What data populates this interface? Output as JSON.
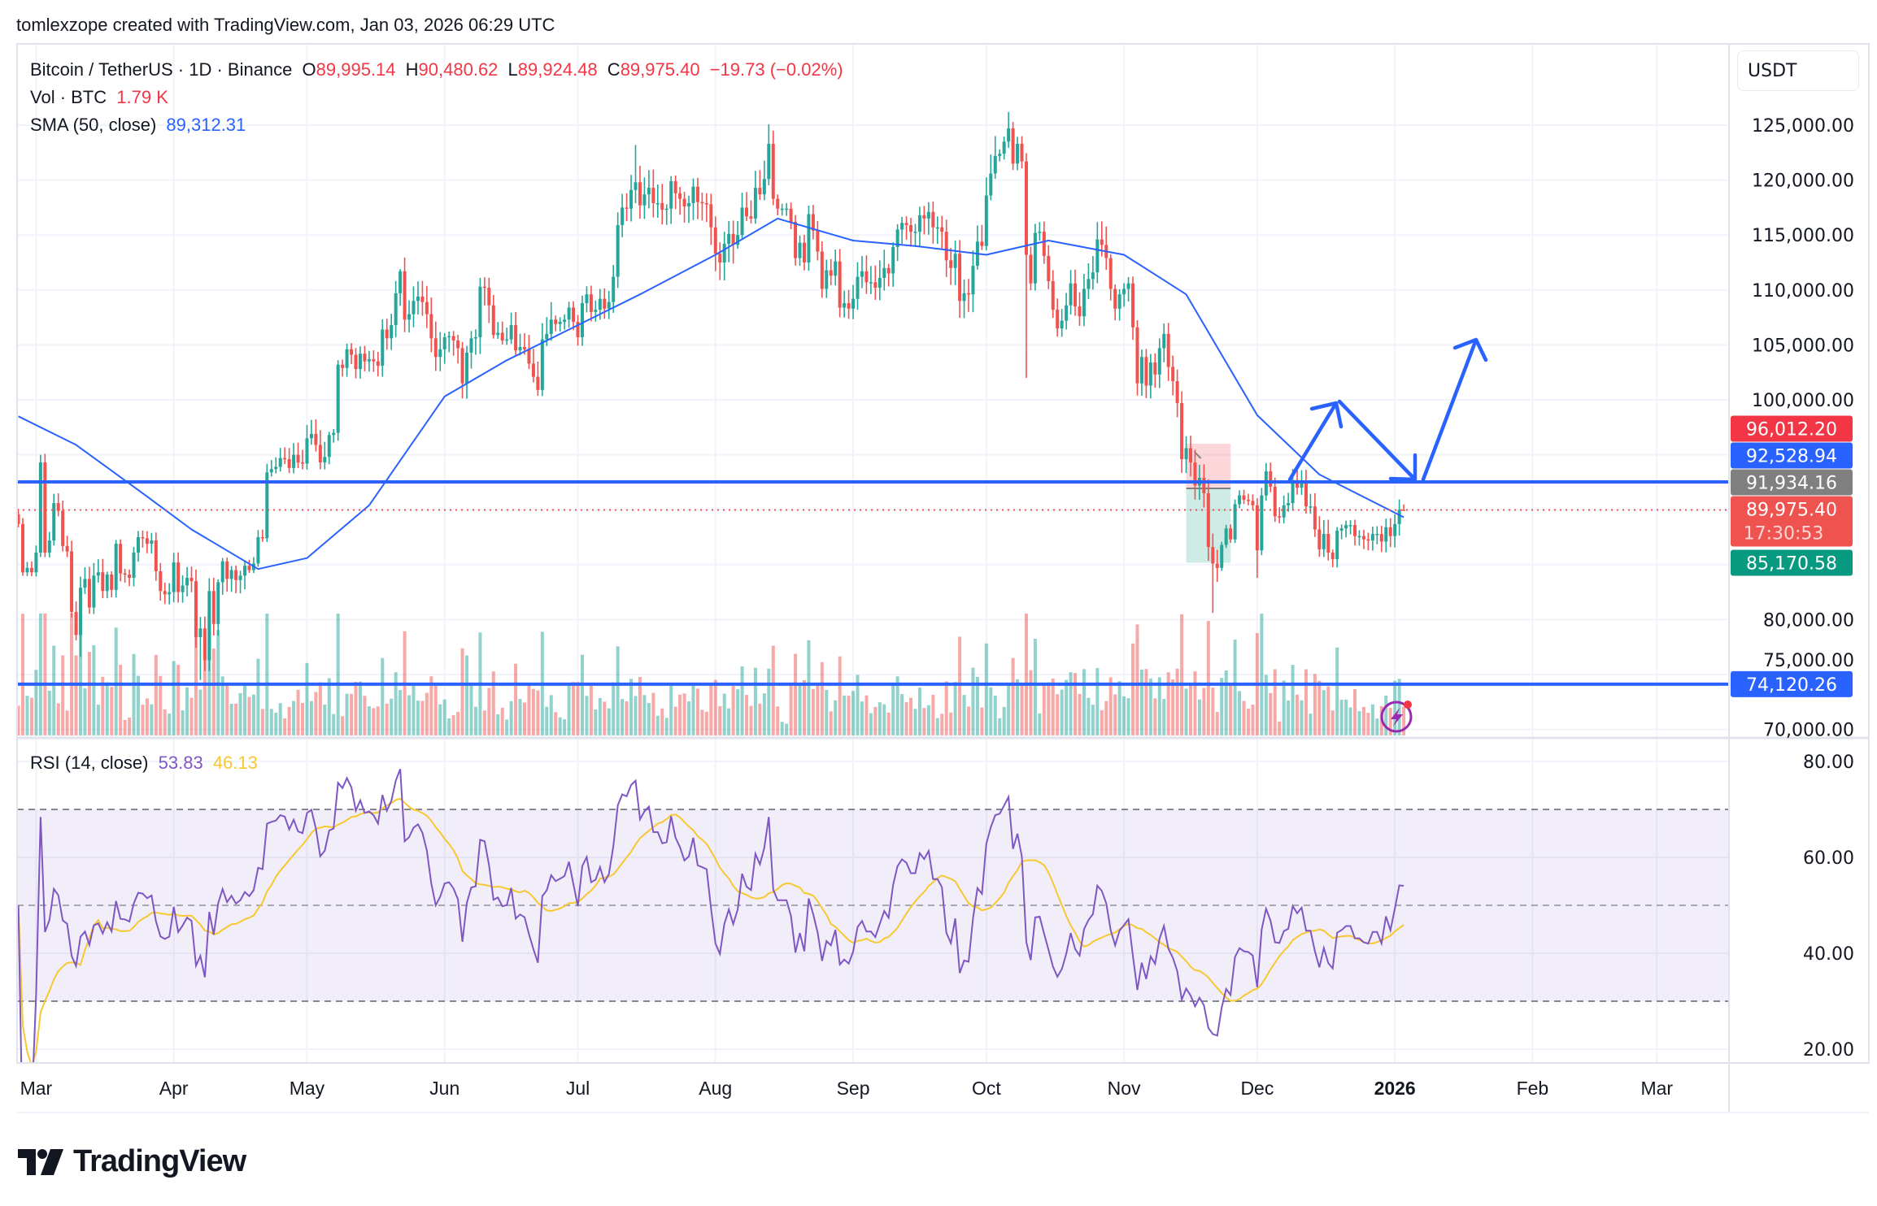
{
  "header": {
    "attribution": "tomlexzope created with TradingView.com, Jan 03, 2026 06:29 UTC"
  },
  "legend": {
    "symbol": "Bitcoin / TetherUS · 1D · Binance",
    "o_label": "O",
    "o": "89,995.14",
    "h_label": "H",
    "h": "90,480.62",
    "l_label": "L",
    "l": "89,924.48",
    "c_label": "C",
    "c": "89,975.40",
    "change": "−19.73 (−0.02%)",
    "vol_label": "Vol · BTC",
    "vol": "1.79 K",
    "sma_label": "SMA (50, close)",
    "sma": "89,312.31"
  },
  "rsi_legend": {
    "label": "RSI (14, close)",
    "rsi": "53.83",
    "ma": "46.13"
  },
  "price_axis": {
    "currency": "USDT",
    "ticks": [
      125000,
      120000,
      115000,
      110000,
      105000,
      100000,
      80000,
      75000,
      70000
    ]
  },
  "rsi_axis": {
    "ticks": [
      80,
      60,
      40,
      20
    ],
    "bands": [
      70,
      50,
      30
    ]
  },
  "time_axis": {
    "labels": [
      {
        "text": "Mar",
        "date": "2025-03-01"
      },
      {
        "text": "Apr",
        "date": "2025-04-01"
      },
      {
        "text": "May",
        "date": "2025-05-01"
      },
      {
        "text": "Jun",
        "date": "2025-06-01"
      },
      {
        "text": "Jul",
        "date": "2025-07-01"
      },
      {
        "text": "Aug",
        "date": "2025-08-01"
      },
      {
        "text": "Sep",
        "date": "2025-09-01"
      },
      {
        "text": "Oct",
        "date": "2025-10-01"
      },
      {
        "text": "Nov",
        "date": "2025-11-01"
      },
      {
        "text": "Dec",
        "date": "2025-12-01"
      },
      {
        "text": "2026",
        "date": "2026-01-01",
        "bold": true
      },
      {
        "text": "Feb",
        "date": "2026-02-01"
      },
      {
        "text": "Mar",
        "date": "2026-03-01"
      }
    ]
  },
  "price_labels": [
    {
      "value": 96012.2,
      "text": "96,012.20",
      "role": "position-stop",
      "color": "#f23645"
    },
    {
      "value": 92528.94,
      "text": "92,528.94",
      "role": "horizontal-line",
      "color": "#2962ff"
    },
    {
      "value": 91934.16,
      "text": "91,934.16",
      "role": "position-entry",
      "color": "#808080"
    },
    {
      "value": 89975.4,
      "text": "89,975.40",
      "countdown": "17:30:53",
      "role": "last-price",
      "color": "#ef5350"
    },
    {
      "value": 85170.58,
      "text": "85,170.58",
      "role": "position-target",
      "color": "#089981"
    },
    {
      "value": 74120.26,
      "text": "74,120.26",
      "role": "horizontal-line",
      "color": "#2962ff"
    }
  ],
  "drawings": {
    "horizontal_lines": [
      92528.94,
      74120.26
    ],
    "position": {
      "entry": 91934.16,
      "stop": 96012.2,
      "target": 85170.58,
      "from": "2025-11-15",
      "to": "2025-11-25"
    },
    "last_price": 89975.4
  },
  "colors": {
    "up": "#26a69a",
    "down": "#ef5350",
    "sma": "#2962ff",
    "rsi": "#7e57c2",
    "rsi_ma": "#f7c831",
    "drawing": "#2962ff"
  },
  "logo": "TradingView",
  "chart_data": {
    "type": "candlestick",
    "title": "Bitcoin / TetherUS · 1D · Binance",
    "ylim": [
      70000,
      127000
    ],
    "grid": true,
    "closes_by_month": [
      {
        "month": "2025-02",
        "from_day": 25,
        "closes": [
          88700,
          84300,
          84700,
          84300
        ]
      },
      {
        "month": "2025-03",
        "from_day": 1,
        "closes": [
          86100,
          94300,
          86100,
          87200,
          90600,
          89900,
          86700,
          86200,
          80700,
          78600,
          82900,
          83700,
          81100,
          84000,
          84300,
          82600,
          84100,
          82700,
          86900,
          84200,
          84100,
          83800,
          86100,
          87500,
          87400,
          86900,
          87200,
          84400,
          82600,
          82300,
          82500
        ]
      },
      {
        "month": "2025-04",
        "from_day": 1,
        "closes": [
          85200,
          82500,
          83100,
          83800,
          83500,
          78400,
          79200,
          76300,
          82600,
          79600,
          83400,
          85300,
          83700,
          84500,
          83600,
          84000,
          84900,
          84500,
          85100,
          87500,
          87400,
          93400,
          93700,
          93900,
          94700,
          94600,
          93800,
          95000,
          94300,
          94200
        ]
      },
      {
        "month": "2025-05",
        "from_day": 1,
        "closes": [
          96500,
          96900,
          95900,
          94300,
          94800,
          96800,
          97000,
          103200,
          102900,
          104600,
          104100,
          102800,
          104200,
          103500,
          103700,
          103500,
          103100,
          106400,
          105600,
          106800,
          109700,
          111700,
          107300,
          107800,
          109000,
          109400,
          108900,
          107800,
          105600,
          103900,
          104600
        ]
      },
      {
        "month": "2025-06",
        "from_day": 1,
        "closes": [
          105700,
          105800,
          105400,
          104700,
          101500,
          104300,
          105600,
          105700,
          110300,
          110200,
          108600,
          105900,
          106100,
          105400,
          105500,
          106800,
          104500,
          104800,
          104600,
          103300,
          102100,
          100900,
          105500,
          106000,
          107300,
          106900,
          107100,
          107300,
          108400,
          107100
        ]
      },
      {
        "month": "2025-07",
        "from_day": 1,
        "closes": [
          105700,
          108800,
          109600,
          108000,
          108200,
          109200,
          108300,
          108900,
          111200,
          115900,
          117500,
          117400,
          119100,
          119800,
          117700,
          118700,
          119300,
          117900,
          117900,
          117300,
          117400,
          119900,
          118800,
          118300,
          117600,
          117900,
          119400,
          118000,
          117900,
          117800,
          115700
        ]
      },
      {
        "month": "2025-08",
        "from_day": 1,
        "closes": [
          113300,
          112500,
          114200,
          115100,
          114100,
          115000,
          117500,
          116700,
          116500,
          119300,
          118700,
          120100,
          123300,
          118300,
          117400,
          117400,
          117400,
          116200,
          112900,
          114300,
          112500,
          116900,
          115400,
          113500,
          110100,
          111800,
          111300,
          112600,
          108400,
          108800,
          108300
        ]
      },
      {
        "month": "2025-09",
        "from_day": 1,
        "closes": [
          109200,
          111200,
          111700,
          110700,
          110700,
          110200,
          111100,
          112000,
          111500,
          113900,
          115500,
          116100,
          115900,
          115300,
          115300,
          116800,
          116500,
          117100,
          115700,
          115700,
          115300,
          112700,
          112000,
          113300,
          109000,
          109700,
          109600,
          112200,
          114400,
          114000
        ]
      },
      {
        "month": "2025-10",
        "from_day": 1,
        "closes": [
          118600,
          120600,
          122200,
          122400,
          123500,
          124700,
          121500,
          123300,
          121700,
          113200,
          110600,
          115200,
          115300,
          113100,
          110800,
          108200,
          106500,
          107200,
          108600,
          110600,
          108500,
          107600,
          110100,
          111000,
          111600,
          114600,
          114100,
          112900,
          110100,
          108300,
          109600
        ]
      },
      {
        "month": "2025-11",
        "from_day": 1,
        "closes": [
          110100,
          110600,
          106600,
          101500,
          103900,
          101300,
          103400,
          102300,
          104700,
          106000,
          103000,
          101700,
          99700,
          94600,
          95600,
          94300,
          92200,
          92900,
          91500,
          86600,
          85100,
          84700,
          86800,
          88300,
          87300,
          90500,
          91300,
          90900,
          90800,
          90400
        ]
      },
      {
        "month": "2025-12",
        "from_day": 1,
        "closes": [
          86300,
          91300,
          93500,
          92100,
          89400,
          89300,
          90400,
          90600,
          92700,
          92000,
          92500,
          90300,
          90300,
          88200,
          86400,
          87800,
          86100,
          85500,
          88100,
          88300,
          88600,
          88600,
          87600,
          87600,
          87300,
          87200,
          87800,
          87800,
          87100,
          88400,
          87600
        ]
      },
      {
        "month": "2026-01",
        "from_day": 1,
        "closes": [
          88700,
          89995.14,
          89975.4
        ]
      }
    ],
    "last_bar": {
      "open": 89995.14,
      "high": 90480.62,
      "low": 89924.48,
      "close": 89975.4
    },
    "notable_highs": {
      "2025-03-02": 95000,
      "2025-05-22": 111900,
      "2025-07-14": 123200,
      "2025-08-14": 124500,
      "2025-10-06": 126200
    },
    "notable_lows": {
      "2025-03-11": 76600,
      "2025-04-07": 74500,
      "2025-10-10": 102000,
      "2025-11-21": 80600,
      "2025-12-01": 83800
    },
    "sma50": [
      {
        "date": "2025-02-25",
        "value": 98500
      },
      {
        "date": "2025-03-10",
        "value": 95900
      },
      {
        "date": "2025-03-25",
        "value": 91500
      },
      {
        "date": "2025-04-05",
        "value": 88200
      },
      {
        "date": "2025-04-20",
        "value": 84600
      },
      {
        "date": "2025-05-01",
        "value": 85600
      },
      {
        "date": "2025-05-15",
        "value": 90400
      },
      {
        "date": "2025-06-01",
        "value": 100300
      },
      {
        "date": "2025-06-15",
        "value": 103600
      },
      {
        "date": "2025-07-01",
        "value": 106800
      },
      {
        "date": "2025-07-15",
        "value": 109600
      },
      {
        "date": "2025-08-01",
        "value": 113200
      },
      {
        "date": "2025-08-15",
        "value": 116500
      },
      {
        "date": "2025-09-01",
        "value": 114500
      },
      {
        "date": "2025-09-15",
        "value": 114000
      },
      {
        "date": "2025-10-01",
        "value": 113200
      },
      {
        "date": "2025-10-15",
        "value": 114500
      },
      {
        "date": "2025-11-01",
        "value": 113200
      },
      {
        "date": "2025-11-15",
        "value": 109600
      },
      {
        "date": "2025-12-01",
        "value": 98600
      },
      {
        "date": "2025-12-15",
        "value": 93200
      },
      {
        "date": "2026-01-03",
        "value": 89312.31
      }
    ],
    "series": [
      {
        "name": "SMA (50, close)"
      },
      {
        "name": "RSI (14, close)"
      }
    ]
  }
}
